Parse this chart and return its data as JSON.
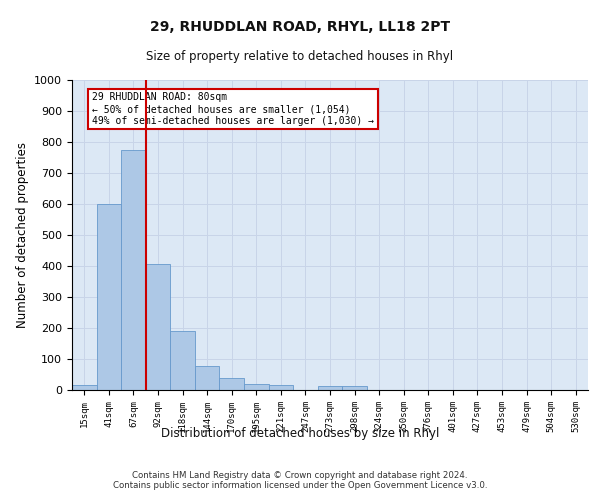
{
  "title1": "29, RHUDDLAN ROAD, RHYL, LL18 2PT",
  "title2": "Size of property relative to detached houses in Rhyl",
  "xlabel": "Distribution of detached houses by size in Rhyl",
  "ylabel": "Number of detached properties",
  "categories": [
    "15sqm",
    "41sqm",
    "67sqm",
    "92sqm",
    "118sqm",
    "144sqm",
    "170sqm",
    "195sqm",
    "221sqm",
    "247sqm",
    "273sqm",
    "298sqm",
    "324sqm",
    "350sqm",
    "376sqm",
    "401sqm",
    "427sqm",
    "453sqm",
    "479sqm",
    "504sqm",
    "530sqm"
  ],
  "values": [
    15,
    600,
    775,
    405,
    190,
    78,
    40,
    18,
    15,
    0,
    12,
    12,
    0,
    0,
    0,
    0,
    0,
    0,
    0,
    0,
    0
  ],
  "bar_color": "#adc8e6",
  "bar_edge_color": "#6699cc",
  "vline_x_index": 2.5,
  "vline_color": "#cc0000",
  "annotation_text": "29 RHUDDLAN ROAD: 80sqm\n← 50% of detached houses are smaller (1,054)\n49% of semi-detached houses are larger (1,030) →",
  "annotation_box_color": "#cc0000",
  "ylim": [
    0,
    1000
  ],
  "yticks": [
    0,
    100,
    200,
    300,
    400,
    500,
    600,
    700,
    800,
    900,
    1000
  ],
  "grid_color": "#c8d4e8",
  "background_color": "#dce8f5",
  "footnote": "Contains HM Land Registry data © Crown copyright and database right 2024.\nContains public sector information licensed under the Open Government Licence v3.0."
}
